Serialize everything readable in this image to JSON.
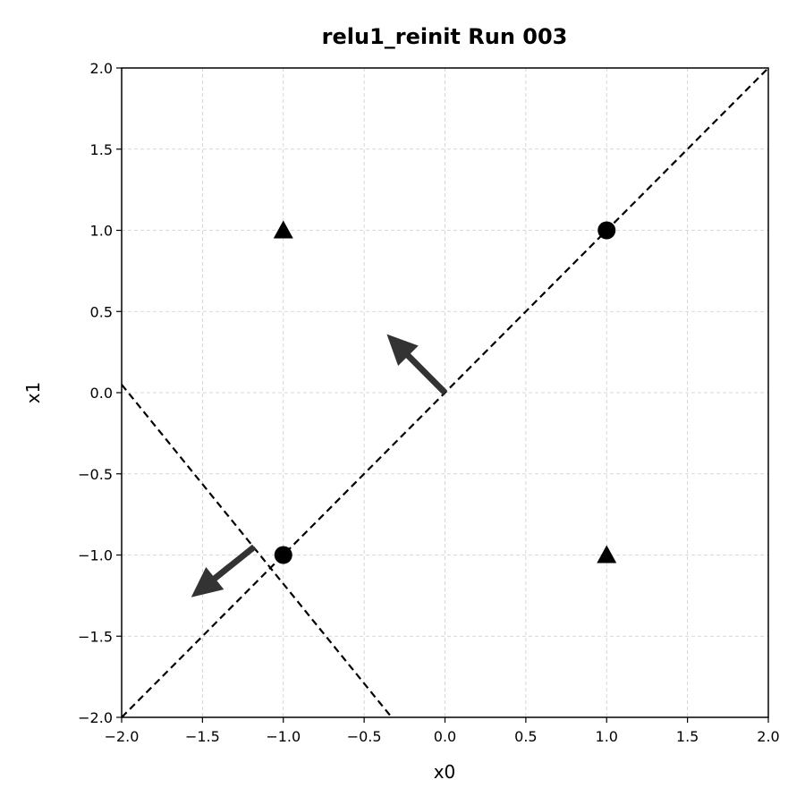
{
  "chart_data": {
    "type": "scatter",
    "title": "relu1_reinit Run 003",
    "xlabel": "x0",
    "ylabel": "x1",
    "xlim": [
      -2.0,
      2.0
    ],
    "ylim": [
      -2.0,
      2.0
    ],
    "x_ticks": [
      "−2.0",
      "−1.5",
      "−1.0",
      "−0.5",
      "0.0",
      "0.5",
      "1.0",
      "1.5",
      "2.0"
    ],
    "y_ticks": [
      "−2.0",
      "−1.5",
      "−1.0",
      "−0.5",
      "0.0",
      "0.5",
      "1.0",
      "1.5",
      "2.0"
    ],
    "x_tick_values": [
      -2.0,
      -1.5,
      -1.0,
      -0.5,
      0.0,
      0.5,
      1.0,
      1.5,
      2.0
    ],
    "y_tick_values": [
      -2.0,
      -1.5,
      -1.0,
      -0.5,
      0.0,
      0.5,
      1.0,
      1.5,
      2.0
    ],
    "grid": true,
    "points": [
      {
        "x": -1.0,
        "y": 1.0,
        "marker": "triangle"
      },
      {
        "x": 1.0,
        "y": -1.0,
        "marker": "triangle"
      },
      {
        "x": 1.0,
        "y": 1.0,
        "marker": "circle"
      },
      {
        "x": -1.0,
        "y": -1.0,
        "marker": "circle"
      }
    ],
    "boundary_lines": [
      {
        "x1": -2.0,
        "y1": -2.0,
        "x2": 2.0,
        "y2": 2.0,
        "style": "dashed"
      },
      {
        "x1": -2.0,
        "y1": 0.05,
        "x2": -0.33,
        "y2": -2.0,
        "style": "dashed"
      }
    ],
    "arrows": [
      {
        "x_start": 0.0,
        "y_start": 0.0,
        "x_end": -0.36,
        "y_end": 0.36
      },
      {
        "x_start": -1.18,
        "y_start": -0.95,
        "x_end": -1.57,
        "y_end": -1.26
      }
    ],
    "colors": {
      "marker": "#000000",
      "line": "#000000",
      "arrow": "#333333",
      "grid": "#cccccc"
    }
  }
}
